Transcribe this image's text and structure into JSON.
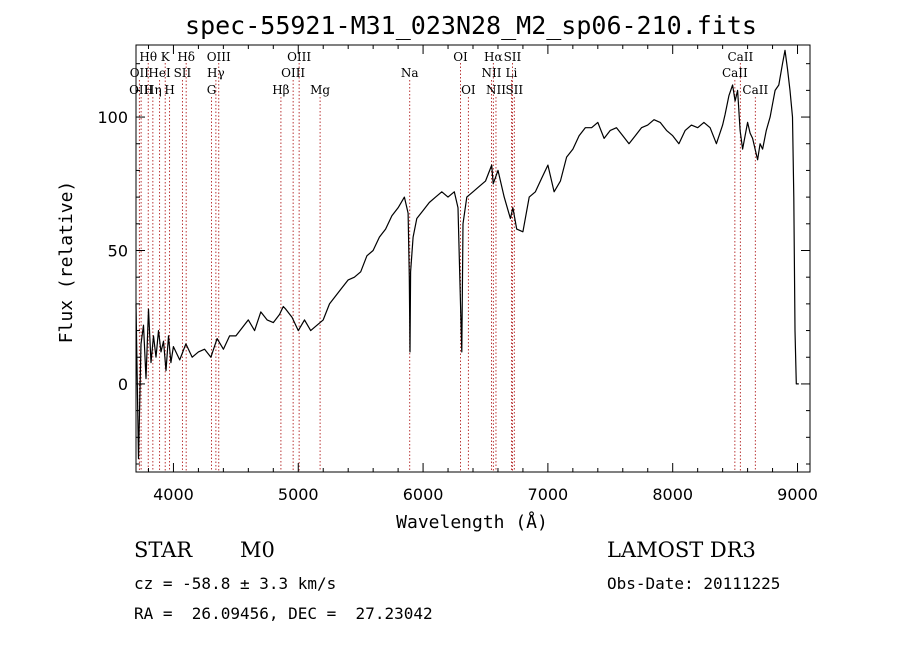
{
  "chart_data": {
    "type": "line",
    "title": "spec-55921-M31_023N28_M2_sp06-210.fits",
    "xlabel": "Wavelength (Å)",
    "ylabel": "Flux (relative)",
    "xlim": [
      3700,
      9100
    ],
    "ylim": [
      -33,
      127
    ],
    "xticks": [
      4000,
      5000,
      6000,
      7000,
      8000,
      9000
    ],
    "yticks": [
      0,
      50,
      100
    ],
    "series": [
      {
        "name": "flux",
        "x": [
          3700,
          3720,
          3740,
          3760,
          3780,
          3800,
          3820,
          3840,
          3860,
          3880,
          3900,
          3920,
          3940,
          3960,
          3980,
          4000,
          4050,
          4100,
          4150,
          4200,
          4250,
          4300,
          4350,
          4400,
          4450,
          4500,
          4550,
          4600,
          4650,
          4700,
          4750,
          4800,
          4850,
          4880,
          4900,
          4950,
          5000,
          5050,
          5100,
          5150,
          5200,
          5250,
          5300,
          5350,
          5400,
          5450,
          5500,
          5550,
          5600,
          5650,
          5700,
          5750,
          5800,
          5850,
          5880,
          5890,
          5895,
          5900,
          5920,
          5950,
          6000,
          6050,
          6100,
          6150,
          6200,
          6250,
          6280,
          6300,
          6310,
          6320,
          6350,
          6400,
          6450,
          6500,
          6550,
          6562,
          6600,
          6650,
          6700,
          6720,
          6750,
          6800,
          6850,
          6900,
          6950,
          7000,
          7050,
          7100,
          7150,
          7200,
          7250,
          7300,
          7350,
          7400,
          7450,
          7500,
          7550,
          7600,
          7650,
          7700,
          7750,
          7800,
          7850,
          7900,
          7950,
          8000,
          8050,
          8100,
          8150,
          8200,
          8250,
          8300,
          8350,
          8400,
          8420,
          8450,
          8480,
          8500,
          8520,
          8540,
          8560,
          8600,
          8620,
          8640,
          8660,
          8680,
          8700,
          8720,
          8750,
          8780,
          8800,
          8820,
          8850,
          8880,
          8900,
          8920,
          8940,
          8960,
          8970,
          8980,
          8990,
          9000,
          9010
        ],
        "y": [
          30,
          -28,
          15,
          22,
          2,
          28,
          8,
          18,
          10,
          20,
          12,
          16,
          5,
          18,
          8,
          14,
          9,
          15,
          10,
          12,
          13,
          10,
          17,
          13,
          18,
          18,
          21,
          24,
          20,
          27,
          24,
          23,
          26,
          29,
          28,
          25,
          20,
          24,
          20,
          22,
          24,
          30,
          33,
          36,
          39,
          40,
          42,
          48,
          50,
          55,
          58,
          63,
          66,
          70,
          64,
          40,
          12,
          42,
          55,
          62,
          65,
          68,
          70,
          72,
          70,
          72,
          66,
          30,
          12,
          60,
          70,
          72,
          74,
          76,
          82,
          75,
          80,
          70,
          62,
          66,
          58,
          57,
          70,
          72,
          77,
          82,
          72,
          76,
          85,
          88,
          93,
          96,
          96,
          98,
          92,
          95,
          96,
          93,
          90,
          93,
          96,
          97,
          99,
          98,
          95,
          93,
          90,
          95,
          97,
          96,
          98,
          96,
          90,
          97,
          101,
          108,
          112,
          106,
          110,
          95,
          88,
          98,
          94,
          92,
          88,
          84,
          90,
          88,
          95,
          100,
          105,
          110,
          112,
          120,
          125,
          118,
          110,
          100,
          70,
          20,
          0,
          0,
          0
        ]
      }
    ],
    "lines": [
      {
        "label": "Hθ",
        "wave": 3798,
        "row": 1
      },
      {
        "label": "OII",
        "wave": 3727,
        "row": 2
      },
      {
        "label": "OIII",
        "wave": 3741,
        "row": 3
      },
      {
        "label": "K",
        "wave": 3934,
        "row": 1
      },
      {
        "label": "HeI",
        "wave": 3889,
        "row": 2
      },
      {
        "label": "Hη",
        "wave": 3835,
        "row": 3
      },
      {
        "label": "SII",
        "wave": 4072,
        "row": 2
      },
      {
        "label": "H",
        "wave": 3969,
        "row": 3
      },
      {
        "label": "Hδ",
        "wave": 4102,
        "row": 1
      },
      {
        "label": "OIII",
        "wave": 4363,
        "row": 1
      },
      {
        "label": "Hγ",
        "wave": 4340,
        "row": 2
      },
      {
        "label": "G",
        "wave": 4305,
        "row": 3
      },
      {
        "label": "OIII",
        "wave": 5007,
        "row": 1
      },
      {
        "label": "OIII",
        "wave": 4959,
        "row": 2
      },
      {
        "label": "Hβ",
        "wave": 4861,
        "row": 3
      },
      {
        "label": "Mg",
        "wave": 5175,
        "row": 3
      },
      {
        "label": "Na",
        "wave": 5893,
        "row": 2
      },
      {
        "label": "OI",
        "wave": 6300,
        "row": 1
      },
      {
        "label": "OI",
        "wave": 6363,
        "row": 3
      },
      {
        "label": "Hα",
        "wave": 6563,
        "row": 1
      },
      {
        "label": "SII",
        "wave": 6716,
        "row": 1
      },
      {
        "label": "NII",
        "wave": 6548,
        "row": 2
      },
      {
        "label": "Li",
        "wave": 6708,
        "row": 2
      },
      {
        "label": "NII",
        "wave": 6584,
        "row": 3
      },
      {
        "label": "SII",
        "wave": 6731,
        "row": 3
      },
      {
        "label": "CaII",
        "wave": 8542,
        "row": 1
      },
      {
        "label": "CaII",
        "wave": 8498,
        "row": 2
      },
      {
        "label": "CaII",
        "wave": 8662,
        "row": 3
      }
    ]
  },
  "info": {
    "object_class": "STAR",
    "subclass": "M0",
    "survey": "LAMOST DR3",
    "cz": "cz = -58.8 ± 3.3 km/s",
    "obs_date": "Obs-Date: 20111225",
    "coords": "RA =  26.09456, DEC =  27.23042"
  },
  "colors": {
    "spectrum": "#000000",
    "line_marker": "#b22222",
    "axis": "#000000"
  }
}
